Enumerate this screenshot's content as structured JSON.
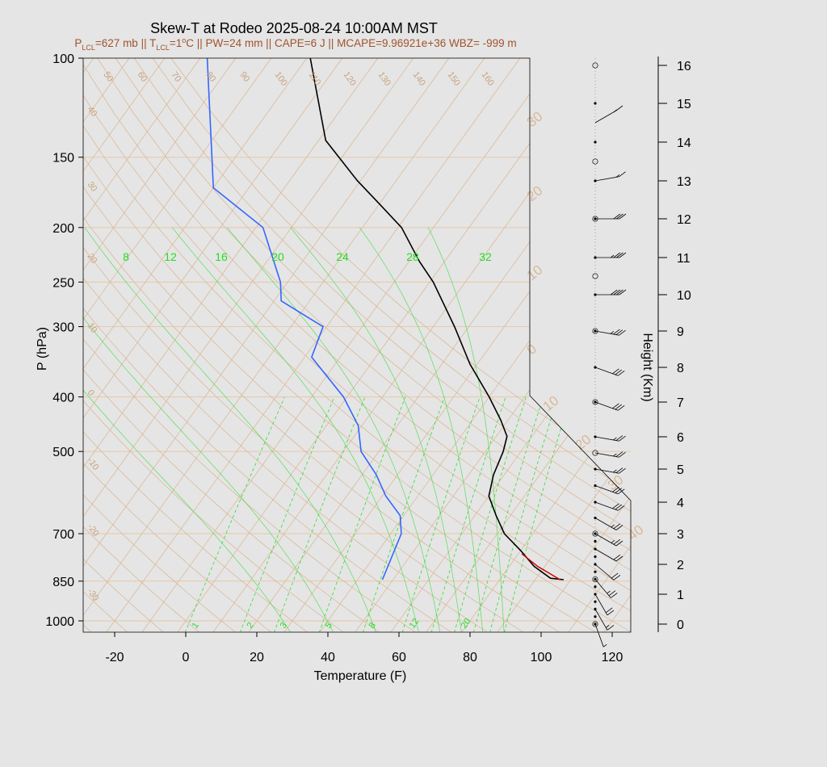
{
  "title": "Skew-T at Rodeo 2025-08-24 10:00AM MST",
  "subtitle": "P_LCL=627 mb || T_LCL=1°C || PW=24 mm || CAPE=6 J || MCAPE=9.96921e+36 WBZ= -999 m",
  "subtitle_parts": {
    "p": "P",
    "p_sub": "LCL",
    "p_val": "=627 mb || T",
    "t_sub": "LCL",
    "t_val": "=1",
    "deg": "o",
    "rest": "C || PW=24 mm || CAPE=6 J || MCAPE=9.96921e+36 WBZ= -999 m"
  },
  "colors": {
    "temperature": "#000000",
    "dewpoint": "#3366ff",
    "parcel": "#cc0000",
    "mixing_ratio": "#33dd33",
    "isotherm": "#d9b48f",
    "isobar": "#e8c8a8",
    "background": "#e5e5e5"
  },
  "chart_data": {
    "type": "skew-t",
    "xlabel": "Temperature (F)",
    "ylabel": "P (hPa)",
    "right_label": "Height (Km)",
    "x_ticks": [
      "-20",
      "0",
      "20",
      "40",
      "60",
      "80",
      "100",
      "120"
    ],
    "x_tick_values": [
      -20,
      0,
      20,
      40,
      60,
      80,
      100,
      120
    ],
    "xlim": [
      -28,
      126
    ],
    "pressure_ticks": [
      "100",
      "150",
      "200",
      "250",
      "300",
      "400",
      "500",
      "700",
      "850",
      "1000"
    ],
    "pressure_tick_values": [
      100,
      150,
      200,
      250,
      300,
      400,
      500,
      700,
      850,
      1000
    ],
    "ylim_hpa": [
      1050,
      100
    ],
    "height_ticks": [
      "0",
      "1",
      "2",
      "3",
      "4",
      "5",
      "6",
      "7",
      "8",
      "9",
      "10",
      "11",
      "12",
      "13",
      "14",
      "15",
      "16"
    ],
    "isotherm_labels_upper": [
      "50",
      "60",
      "70",
      "80",
      "90",
      "100",
      "110",
      "120",
      "130",
      "140",
      "150",
      "160"
    ],
    "isotherm_labels_left": [
      "40",
      "30",
      "20",
      "10",
      "0",
      "-10",
      "-20",
      "-30"
    ],
    "isotherm_labels_right": [
      "30",
      "20",
      "10",
      "0",
      "10",
      "20",
      "30",
      "40"
    ],
    "mixing_ratio_labels_top": [
      "8",
      "12",
      "16",
      "20",
      "24",
      "28",
      "32"
    ],
    "mixing_ratio_labels_bottom": [
      "1",
      "2",
      "3",
      "5",
      "8",
      "12",
      "20"
    ],
    "temperature_profile": [
      {
        "p": 845,
        "t": 98
      },
      {
        "p": 840,
        "t": 94
      },
      {
        "p": 800,
        "t": 87
      },
      {
        "p": 750,
        "t": 80
      },
      {
        "p": 700,
        "t": 72
      },
      {
        "p": 650,
        "t": 66
      },
      {
        "p": 600,
        "t": 60
      },
      {
        "p": 550,
        "t": 57
      },
      {
        "p": 500,
        "t": 55
      },
      {
        "p": 470,
        "t": 53
      },
      {
        "p": 440,
        "t": 48
      },
      {
        "p": 400,
        "t": 40
      },
      {
        "p": 350,
        "t": 28
      },
      {
        "p": 300,
        "t": 16
      },
      {
        "p": 250,
        "t": 1
      },
      {
        "p": 230,
        "t": -7
      },
      {
        "p": 200,
        "t": -19
      },
      {
        "p": 180,
        "t": -31
      },
      {
        "p": 165,
        "t": -41
      },
      {
        "p": 140,
        "t": -58
      },
      {
        "p": 100,
        "t": -79
      }
    ],
    "dewpoint_profile": [
      {
        "p": 845,
        "t": 47
      },
      {
        "p": 700,
        "t": 43
      },
      {
        "p": 650,
        "t": 39
      },
      {
        "p": 600,
        "t": 31
      },
      {
        "p": 550,
        "t": 24
      },
      {
        "p": 500,
        "t": 15
      },
      {
        "p": 450,
        "t": 9
      },
      {
        "p": 400,
        "t": -1
      },
      {
        "p": 340,
        "t": -18
      },
      {
        "p": 300,
        "t": -21
      },
      {
        "p": 270,
        "t": -38
      },
      {
        "p": 250,
        "t": -42
      },
      {
        "p": 200,
        "t": -58
      },
      {
        "p": 170,
        "t": -80
      },
      {
        "p": 100,
        "t": -108
      }
    ],
    "parcel_profile": [
      {
        "p": 845,
        "t": 97
      },
      {
        "p": 800,
        "t": 88
      },
      {
        "p": 760,
        "t": 81
      }
    ],
    "mixing_ratios": [
      1,
      2,
      3,
      5,
      8,
      12,
      16,
      20,
      24,
      28,
      32
    ],
    "wind_barbs": [
      {
        "h": 0.0,
        "dir": 340,
        "spd": 5
      },
      {
        "h": 0.5,
        "dir": 330,
        "spd": 15
      },
      {
        "h": 1.0,
        "dir": 330,
        "spd": 20
      },
      {
        "h": 1.5,
        "dir": 320,
        "spd": 25
      },
      {
        "h": 2.0,
        "dir": 310,
        "spd": 20
      },
      {
        "h": 2.5,
        "dir": 300,
        "spd": 20
      },
      {
        "h": 3.0,
        "dir": 300,
        "spd": 25
      },
      {
        "h": 3.5,
        "dir": 300,
        "spd": 25
      },
      {
        "h": 4.0,
        "dir": 290,
        "spd": 30
      },
      {
        "h": 4.5,
        "dir": 290,
        "spd": 30
      },
      {
        "h": 5.0,
        "dir": 280,
        "spd": 25
      },
      {
        "h": 5.5,
        "dir": 280,
        "spd": 25
      },
      {
        "h": 6.0,
        "dir": 280,
        "spd": 25
      },
      {
        "h": 7.0,
        "dir": 290,
        "spd": 30
      },
      {
        "h": 8.0,
        "dir": 290,
        "spd": 30
      },
      {
        "h": 9.0,
        "dir": 280,
        "spd": 35
      },
      {
        "h": 10.0,
        "dir": 270,
        "spd": 40
      },
      {
        "h": 11.0,
        "dir": 270,
        "spd": 35
      },
      {
        "h": 12.0,
        "dir": 270,
        "spd": 30
      },
      {
        "h": 13.0,
        "dir": 260,
        "spd": 15
      },
      {
        "h": 14.5,
        "dir": 240,
        "spd": 15
      }
    ]
  }
}
